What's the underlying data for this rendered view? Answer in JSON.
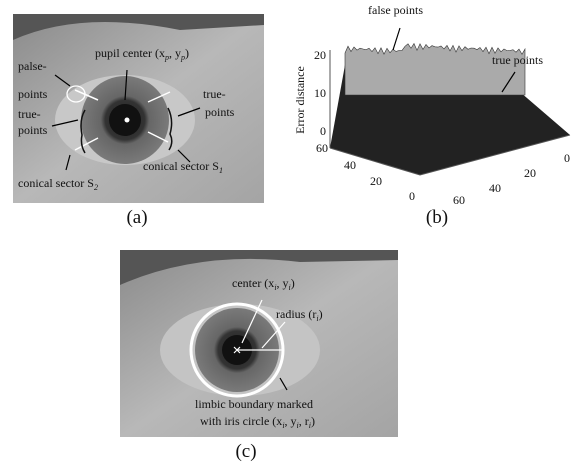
{
  "panels": [
    {
      "label": "(a)",
      "annotations": [
        [
          "palse-"
        ],
        [
          "points"
        ],
        [
          "true-"
        ],
        [
          "points"
        ],
        [
          "pupil center (x",
          "p",
          ", y",
          "p",
          ")"
        ],
        [
          "true-"
        ],
        [
          "points"
        ],
        [
          "conical sector S",
          "1"
        ],
        [
          "conical sector S",
          "2"
        ]
      ]
    },
    {
      "label": "(b)",
      "annotations": [
        [
          "false points"
        ],
        [
          "true points"
        ]
      ],
      "plot": {
        "z_label": "Error distance",
        "zticks": [
          0,
          10,
          20
        ],
        "left_ticks": [
          60,
          40,
          20,
          0
        ],
        "right_ticks": [
          0,
          20,
          40,
          60
        ]
      }
    },
    {
      "label": "(c)",
      "annotations": [
        [
          "center (x",
          "i",
          ", y",
          "i",
          ")"
        ],
        [
          "radius (r",
          "i",
          ")"
        ],
        [
          "limbic boundary marked"
        ],
        [
          "with iris circle (x",
          "i",
          ", y",
          "i",
          ", r",
          "i",
          ")"
        ]
      ]
    }
  ]
}
